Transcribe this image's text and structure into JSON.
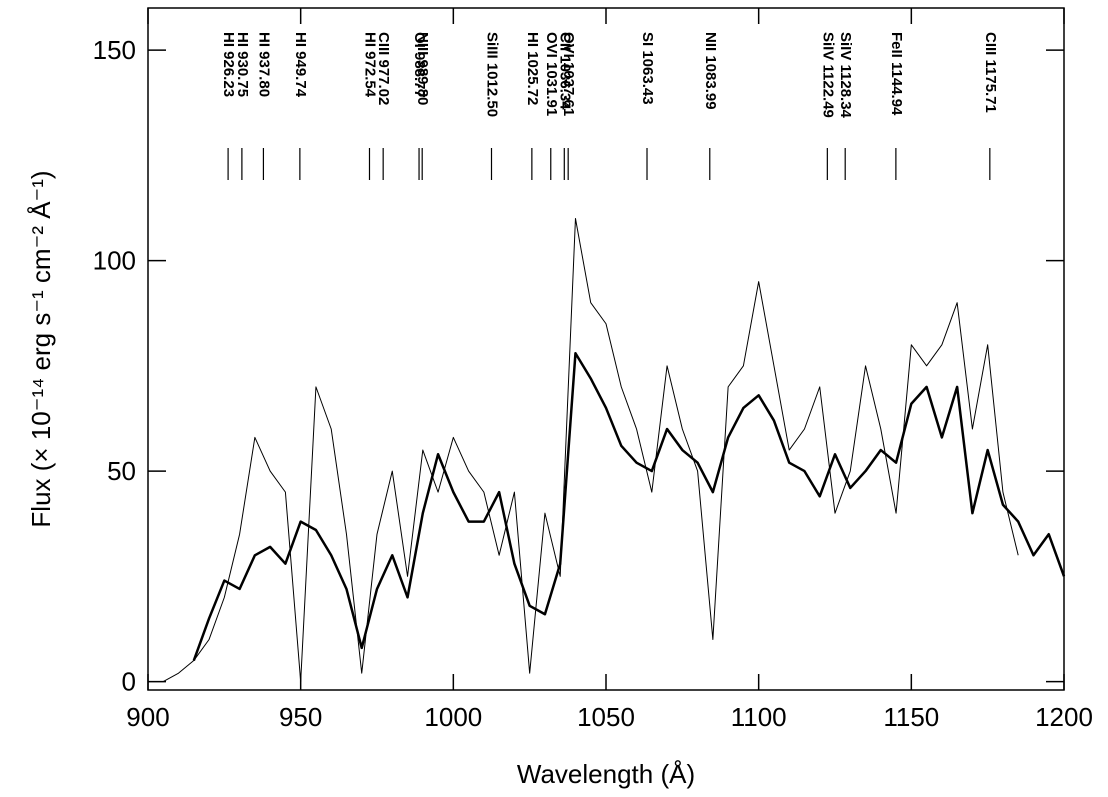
{
  "chart_data": {
    "type": "line",
    "xlabel": "Wavelength (Å)",
    "ylabel": "Flux (× 10⁻¹⁴ erg s⁻¹ cm⁻² Å⁻¹)",
    "x": [
      900,
      905,
      910,
      915,
      920,
      925,
      930,
      935,
      940,
      945,
      950,
      955,
      960,
      965,
      970,
      975,
      980,
      985,
      990,
      995,
      1000,
      1005,
      1010,
      1015,
      1020,
      1025,
      1030,
      1035,
      1040,
      1045,
      1050,
      1055,
      1060,
      1065,
      1070,
      1075,
      1080,
      1085,
      1090,
      1095,
      1100,
      1105,
      1110,
      1115,
      1120,
      1125,
      1130,
      1135,
      1140,
      1145,
      1150,
      1155,
      1160,
      1165,
      1170,
      1175,
      1180,
      1185,
      1190,
      1195,
      1200
    ],
    "series": [
      {
        "color": "#000000",
        "width": 1,
        "values": [
          0,
          0,
          2,
          5,
          10,
          20,
          35,
          58,
          50,
          45,
          0,
          70,
          60,
          35,
          2,
          35,
          50,
          25,
          55,
          45,
          58,
          50,
          45,
          30,
          45,
          2,
          40,
          25,
          110,
          90,
          85,
          70,
          60,
          45,
          75,
          60,
          50,
          10,
          70,
          75,
          95,
          75,
          55,
          60,
          70,
          40,
          50,
          75,
          60,
          40,
          80,
          75,
          80,
          90,
          60,
          80,
          45,
          30,
          null,
          null,
          null
        ]
      },
      {
        "color": "#000000",
        "width": 2.5,
        "values": [
          null,
          null,
          null,
          5,
          15,
          24,
          22,
          30,
          32,
          28,
          38,
          36,
          30,
          22,
          8,
          22,
          30,
          20,
          40,
          54,
          45,
          38,
          38,
          45,
          28,
          18,
          16,
          28,
          78,
          72,
          65,
          56,
          52,
          50,
          60,
          55,
          52,
          45,
          58,
          65,
          68,
          62,
          52,
          50,
          44,
          54,
          46,
          50,
          55,
          52,
          66,
          70,
          58,
          70,
          40,
          55,
          42,
          38,
          30,
          35,
          25
        ]
      }
    ],
    "annotations": [
      {
        "label": "HI 926.23",
        "x": 926.23
      },
      {
        "label": "HI 930.75",
        "x": 930.75
      },
      {
        "label": "HI 937.80",
        "x": 937.8
      },
      {
        "label": "HI 949.74",
        "x": 949.74
      },
      {
        "label": "HI 972.54",
        "x": 972.54
      },
      {
        "label": "CIII 977.02",
        "x": 977.02
      },
      {
        "label": "OI 988.77",
        "x": 988.77
      },
      {
        "label": "NIII 989.80",
        "x": 989.8
      },
      {
        "label": "SiIII 1012.50",
        "x": 1012.5
      },
      {
        "label": "HI 1025.72",
        "x": 1025.72
      },
      {
        "label": "OVI 1031.91",
        "x": 1031.91
      },
      {
        "label": "CII 1036.34",
        "x": 1036.34
      },
      {
        "label": "OVI 1037.61",
        "x": 1037.61
      },
      {
        "label": "SI 1063.43",
        "x": 1063.43
      },
      {
        "label": "NII 1083.99",
        "x": 1083.99
      },
      {
        "label": "SiIV 1122.49",
        "x": 1122.49
      },
      {
        "label": "SiIV 1128.34",
        "x": 1128.34
      },
      {
        "label": "FeII 1144.94",
        "x": 1144.94
      },
      {
        "label": "CIII 1175.71",
        "x": 1175.71
      }
    ],
    "xlim": [
      900,
      1200
    ],
    "xticks": [
      900,
      950,
      1000,
      1050,
      1100,
      1150,
      1200
    ],
    "ylim": [
      -2,
      160
    ],
    "yticks": [
      0,
      50,
      100,
      150
    ]
  }
}
